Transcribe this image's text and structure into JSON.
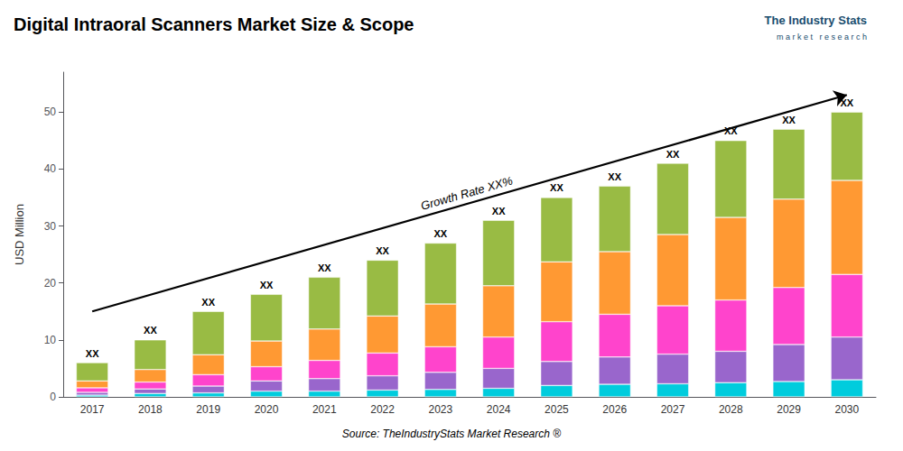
{
  "chart_data": {
    "type": "bar",
    "stacked": true,
    "title": "Digital Intraoral Scanners Market Size & Scope",
    "source": "Source: TheIndustryStats Market Research ®",
    "ylabel": "USD Million",
    "categories": [
      "2017",
      "2018",
      "2019",
      "2020",
      "2021",
      "2022",
      "2023",
      "2024",
      "2025",
      "2026",
      "2027",
      "2028",
      "2029",
      "2030"
    ],
    "series": [
      {
        "color": "#00CCDD",
        "values": [
          0.3,
          0.6,
          0.7,
          1.0,
          1.0,
          1.2,
          1.3,
          1.5,
          2.0,
          2.2,
          2.3,
          2.5,
          2.7,
          3.0
        ]
      },
      {
        "color": "#9966CC",
        "values": [
          0.5,
          0.8,
          1.2,
          1.8,
          2.2,
          2.5,
          3.0,
          3.5,
          4.2,
          4.8,
          5.2,
          5.5,
          6.5,
          7.5
        ]
      },
      {
        "color": "#FF44CC",
        "values": [
          0.8,
          1.2,
          2.0,
          2.5,
          3.2,
          4.0,
          4.5,
          5.5,
          7.0,
          7.5,
          8.5,
          9.0,
          10.0,
          11.0
        ]
      },
      {
        "color": "#FF9933",
        "values": [
          1.2,
          2.2,
          3.5,
          4.5,
          5.5,
          6.5,
          7.5,
          9.0,
          10.5,
          11.0,
          12.5,
          14.5,
          15.5,
          16.5
        ]
      },
      {
        "color": "#99BB44",
        "values": [
          3.2,
          5.2,
          7.6,
          8.2,
          9.1,
          9.8,
          10.7,
          11.5,
          11.3,
          11.5,
          12.5,
          13.5,
          12.3,
          12.0
        ]
      }
    ],
    "ylim": [
      0,
      57
    ],
    "yticks": [
      0,
      10,
      20,
      30,
      40,
      50
    ],
    "grid": false,
    "annotations": [
      {
        "text": "XX",
        "x": "2017"
      },
      {
        "text": "XX",
        "x": "2018"
      },
      {
        "text": "XX",
        "x": "2019"
      },
      {
        "text": "XX",
        "x": "2020"
      },
      {
        "text": "XX",
        "x": "2021"
      },
      {
        "text": "XX",
        "x": "2022"
      },
      {
        "text": "XX",
        "x": "2023"
      },
      {
        "text": "XX",
        "x": "2024"
      },
      {
        "text": "XX",
        "x": "2025"
      },
      {
        "text": "XX",
        "x": "2026"
      },
      {
        "text": "XX",
        "x": "2027"
      },
      {
        "text": "XX",
        "x": "2028"
      },
      {
        "text": "XX",
        "x": "2029"
      },
      {
        "text": "XX",
        "x": "2030"
      },
      {
        "text": "Growth Rate XX%",
        "arrow_from": [
          "2017",
          15
        ],
        "arrow_to": [
          "2030",
          53
        ]
      },
      {
        "text": "The Industry Stats"
      },
      {
        "text": "m a r k e t   r e s e a r c h"
      }
    ]
  }
}
